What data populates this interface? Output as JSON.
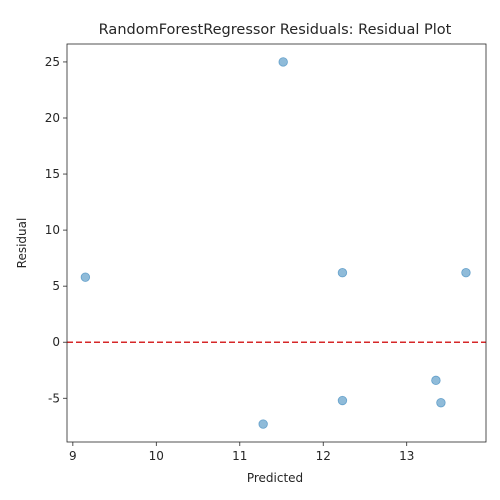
{
  "chart_data": {
    "type": "scatter",
    "title": "RandomForestRegressor Residuals: Residual Plot",
    "xlabel": "Predicted",
    "ylabel": "Residual",
    "xlim": [
      8.93,
      13.95
    ],
    "ylim": [
      -8.9,
      26.6
    ],
    "xticks": [
      9,
      10,
      11,
      12,
      13
    ],
    "yticks": [
      -5,
      0,
      5,
      10,
      15,
      20,
      25
    ],
    "grid": false,
    "reference_line": {
      "y": 0,
      "color": "#d62728",
      "style": "dashed"
    },
    "marker_color": "#1f77b4",
    "points": [
      {
        "x": 11.52,
        "y": 25.0
      },
      {
        "x": 9.15,
        "y": 5.8
      },
      {
        "x": 12.23,
        "y": 6.2
      },
      {
        "x": 13.71,
        "y": 6.2
      },
      {
        "x": 13.35,
        "y": -3.4
      },
      {
        "x": 12.23,
        "y": -5.2
      },
      {
        "x": 13.41,
        "y": -5.4
      },
      {
        "x": 11.28,
        "y": -7.3
      }
    ]
  }
}
